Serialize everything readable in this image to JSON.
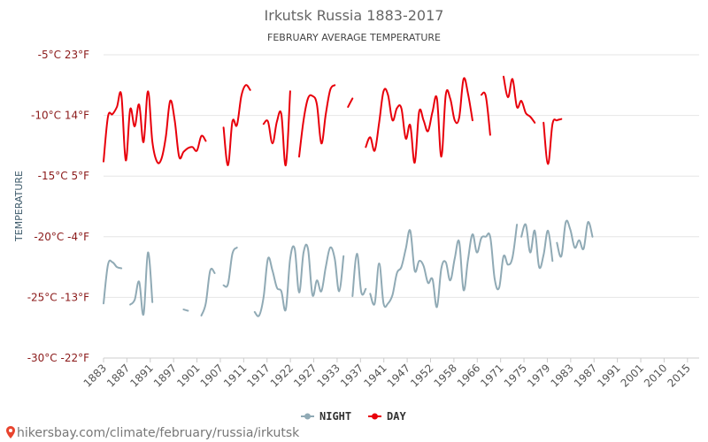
{
  "chart_data": {
    "type": "line",
    "title": "Irkutsk Russia 1883-2017",
    "subtitle": "FEBRUARY AVERAGE TEMPERATURE",
    "ylabel": "TEMPERATURE",
    "ylim": [
      -30,
      -5
    ],
    "yticks": [
      {
        "value": -5,
        "label": "-5°C 23°F"
      },
      {
        "value": -10,
        "label": "-10°C 14°F"
      },
      {
        "value": -15,
        "label": "-15°C 5°F"
      },
      {
        "value": -20,
        "label": "-20°C -4°F"
      },
      {
        "value": -25,
        "label": "-25°C -13°F"
      },
      {
        "value": -30,
        "label": "-30°C -22°F"
      }
    ],
    "xlim": [
      1883,
      2017
    ],
    "xtick_labels": [
      "1883",
      "1887",
      "1891",
      "1897",
      "1901",
      "1907",
      "1911",
      "1917",
      "1922",
      "1927",
      "1933",
      "1937",
      "1941",
      "1947",
      "1952",
      "1958",
      "1966",
      "1971",
      "1975",
      "1979",
      "1983",
      "1987",
      "1991",
      "2001",
      "2010",
      "2015"
    ],
    "legend": "bottom-center",
    "grid": true,
    "series": [
      {
        "name": "NIGHT",
        "color": "#90aab5",
        "segments": [
          [
            [
              1883,
              -25.5
            ],
            [
              1884,
              -22.3
            ],
            [
              1885,
              -22.1
            ],
            [
              1886,
              -22.5
            ],
            [
              1887,
              -22.6
            ]
          ],
          [
            [
              1889,
              -25.6
            ],
            [
              1890,
              -25.2
            ],
            [
              1891,
              -23.7
            ],
            [
              1892,
              -26.4
            ],
            [
              1893,
              -21.3
            ],
            [
              1894,
              -25.4
            ]
          ],
          [
            [
              1901,
              -26.0
            ],
            [
              1902,
              -26.1
            ]
          ],
          [
            [
              1905,
              -26.5
            ],
            [
              1906,
              -25.5
            ],
            [
              1907,
              -22.8
            ],
            [
              1908,
              -23.0
            ]
          ],
          [
            [
              1910,
              -24.0
            ],
            [
              1911,
              -23.9
            ],
            [
              1912,
              -21.4
            ],
            [
              1913,
              -20.9
            ]
          ],
          [
            [
              1917,
              -26.2
            ],
            [
              1918,
              -26.5
            ],
            [
              1919,
              -25.0
            ],
            [
              1920,
              -21.8
            ],
            [
              1921,
              -22.8
            ],
            [
              1922,
              -24.2
            ],
            [
              1923,
              -24.5
            ],
            [
              1924,
              -26.0
            ],
            [
              1925,
              -21.8
            ],
            [
              1926,
              -21.0
            ],
            [
              1927,
              -24.6
            ],
            [
              1928,
              -21.3
            ],
            [
              1929,
              -21.0
            ],
            [
              1930,
              -24.8
            ],
            [
              1931,
              -23.6
            ],
            [
              1932,
              -24.5
            ],
            [
              1933,
              -22.5
            ],
            [
              1934,
              -20.9
            ],
            [
              1935,
              -21.8
            ],
            [
              1936,
              -24.5
            ],
            [
              1937,
              -21.6
            ]
          ],
          [
            [
              1939,
              -24.9
            ],
            [
              1940,
              -21.4
            ],
            [
              1941,
              -24.6
            ],
            [
              1942,
              -24.3
            ]
          ],
          [
            [
              1943,
              -24.7
            ],
            [
              1944,
              -25.5
            ],
            [
              1945,
              -22.2
            ],
            [
              1946,
              -25.5
            ],
            [
              1947,
              -25.5
            ],
            [
              1948,
              -24.8
            ],
            [
              1949,
              -23.0
            ],
            [
              1950,
              -22.5
            ],
            [
              1951,
              -21.0
            ],
            [
              1952,
              -19.5
            ],
            [
              1953,
              -22.8
            ],
            [
              1954,
              -22.0
            ],
            [
              1955,
              -22.4
            ],
            [
              1956,
              -23.8
            ],
            [
              1957,
              -23.5
            ],
            [
              1958,
              -25.8
            ],
            [
              1959,
              -22.6
            ],
            [
              1960,
              -22.1
            ],
            [
              1961,
              -23.6
            ],
            [
              1962,
              -21.8
            ],
            [
              1963,
              -20.4
            ],
            [
              1964,
              -24.4
            ],
            [
              1965,
              -21.9
            ],
            [
              1966,
              -19.8
            ],
            [
              1967,
              -21.3
            ],
            [
              1968,
              -20.1
            ],
            [
              1969,
              -20.0
            ],
            [
              1970,
              -20.0
            ],
            [
              1971,
              -23.5
            ],
            [
              1972,
              -24.2
            ],
            [
              1973,
              -21.6
            ],
            [
              1974,
              -22.3
            ],
            [
              1975,
              -21.7
            ],
            [
              1976,
              -19.0
            ]
          ],
          [
            [
              1977,
              -20.0
            ],
            [
              1978,
              -19.0
            ],
            [
              1979,
              -21.3
            ],
            [
              1980,
              -19.5
            ],
            [
              1981,
              -22.5
            ],
            [
              1982,
              -21.5
            ],
            [
              1983,
              -19.5
            ],
            [
              1984,
              -22.0
            ]
          ],
          [
            [
              1985,
              -20.5
            ],
            [
              1986,
              -21.6
            ],
            [
              1987,
              -18.8
            ],
            [
              1988,
              -19.4
            ],
            [
              1989,
              -20.9
            ],
            [
              1990,
              -20.3
            ],
            [
              1991,
              -21.0
            ],
            [
              1992,
              -18.8
            ],
            [
              1993,
              -20.0
            ]
          ]
        ]
      },
      {
        "name": "DAY",
        "color": "#e8000b",
        "segments": [
          [
            [
              1883,
              -13.8
            ],
            [
              1884,
              -10.1
            ],
            [
              1885,
              -9.9
            ],
            [
              1886,
              -9.3
            ],
            [
              1887,
              -8.3
            ],
            [
              1888,
              -13.7
            ],
            [
              1889,
              -9.5
            ],
            [
              1890,
              -10.9
            ],
            [
              1891,
              -9.1
            ],
            [
              1892,
              -12.2
            ],
            [
              1893,
              -8.0
            ],
            [
              1894,
              -12.2
            ],
            [
              1895,
              -13.8
            ],
            [
              1896,
              -13.6
            ],
            [
              1897,
              -11.8
            ],
            [
              1898,
              -8.8
            ],
            [
              1899,
              -10.4
            ],
            [
              1900,
              -13.4
            ],
            [
              1901,
              -13.0
            ],
            [
              1902,
              -12.7
            ],
            [
              1903,
              -12.6
            ],
            [
              1904,
              -12.9
            ],
            [
              1905,
              -11.7
            ],
            [
              1906,
              -12.1
            ]
          ],
          [
            [
              1910,
              -11.0
            ],
            [
              1911,
              -14.1
            ],
            [
              1912,
              -10.5
            ],
            [
              1913,
              -10.8
            ],
            [
              1914,
              -8.4
            ],
            [
              1915,
              -7.5
            ],
            [
              1916,
              -7.9
            ]
          ],
          [
            [
              1919,
              -10.7
            ],
            [
              1920,
              -10.5
            ],
            [
              1921,
              -12.3
            ],
            [
              1922,
              -10.5
            ],
            [
              1923,
              -9.9
            ],
            [
              1924,
              -14.1
            ],
            [
              1925,
              -8.0
            ]
          ],
          [
            [
              1927,
              -13.4
            ],
            [
              1928,
              -10.4
            ],
            [
              1929,
              -8.6
            ],
            [
              1930,
              -8.4
            ],
            [
              1931,
              -9.1
            ],
            [
              1932,
              -12.3
            ],
            [
              1933,
              -9.9
            ],
            [
              1934,
              -7.9
            ],
            [
              1935,
              -7.5
            ]
          ],
          [
            [
              1938,
              -9.3
            ],
            [
              1939,
              -8.6
            ]
          ],
          [
            [
              1942,
              -12.6
            ],
            [
              1943,
              -11.8
            ],
            [
              1944,
              -12.9
            ],
            [
              1945,
              -10.6
            ],
            [
              1946,
              -8.0
            ],
            [
              1947,
              -8.3
            ],
            [
              1948,
              -10.4
            ],
            [
              1949,
              -9.4
            ],
            [
              1950,
              -9.4
            ],
            [
              1951,
              -11.9
            ],
            [
              1952,
              -10.8
            ],
            [
              1953,
              -13.9
            ],
            [
              1954,
              -9.7
            ],
            [
              1955,
              -10.4
            ],
            [
              1956,
              -11.3
            ],
            [
              1957,
              -9.7
            ],
            [
              1958,
              -8.6
            ],
            [
              1959,
              -13.4
            ],
            [
              1960,
              -8.3
            ],
            [
              1961,
              -8.6
            ],
            [
              1962,
              -10.4
            ],
            [
              1963,
              -10.2
            ],
            [
              1964,
              -7.0
            ],
            [
              1965,
              -8.2
            ],
            [
              1966,
              -10.4
            ]
          ],
          [
            [
              1968,
              -8.3
            ],
            [
              1969,
              -8.4
            ],
            [
              1970,
              -11.6
            ]
          ],
          [
            [
              1973,
              -6.8
            ],
            [
              1974,
              -8.5
            ],
            [
              1975,
              -7.0
            ],
            [
              1976,
              -9.3
            ],
            [
              1977,
              -8.8
            ],
            [
              1978,
              -9.8
            ],
            [
              1979,
              -10.1
            ],
            [
              1980,
              -10.6
            ]
          ],
          [
            [
              1982,
              -10.6
            ],
            [
              1983,
              -14.0
            ],
            [
              1984,
              -10.7
            ],
            [
              1985,
              -10.4
            ],
            [
              1986,
              -10.3
            ]
          ]
        ]
      }
    ]
  },
  "legend": {
    "night_label": "NIGHT",
    "day_label": "DAY"
  },
  "footer": {
    "watermark": "hikersbay.com/climate/february/russia/irkutsk"
  }
}
